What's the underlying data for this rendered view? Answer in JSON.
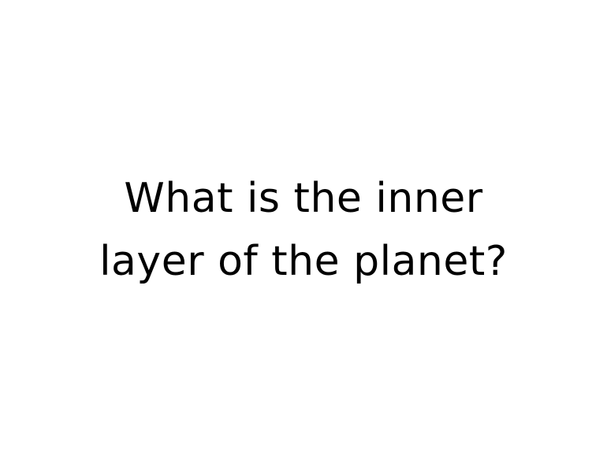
{
  "slide": {
    "question_lines": [
      "What is the inner",
      "layer of the planet?"
    ]
  }
}
